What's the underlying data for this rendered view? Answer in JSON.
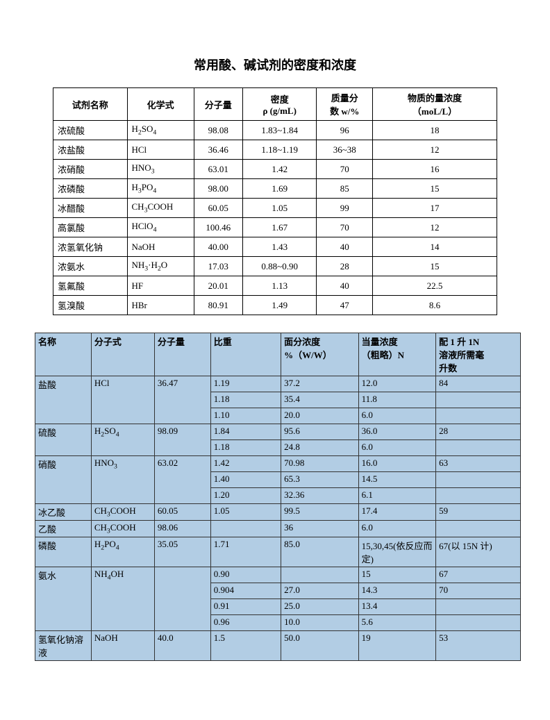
{
  "title": "常用酸、碱试剂的密度和浓度",
  "table1": {
    "headers": {
      "name": "试剂名称",
      "formula": "化学式",
      "mw": "分子量",
      "density": "密度\nρ (g/mL)",
      "mass": "质量分数 w/%",
      "conc": "物质的量浓度（moL/L）"
    },
    "rows": [
      {
        "name": "浓硫酸",
        "formula": "H2SO4",
        "mw": "98.08",
        "density": "1.83~1.84",
        "mass": "96",
        "conc": "18"
      },
      {
        "name": "浓盐酸",
        "formula": "HCl",
        "mw": "36.46",
        "density": "1.18~1.19",
        "mass": "36~38",
        "conc": "12"
      },
      {
        "name": "浓硝酸",
        "formula": "HNO3",
        "mw": "63.01",
        "density": "1.42",
        "mass": "70",
        "conc": "16"
      },
      {
        "name": "浓磷酸",
        "formula": "H3PO4",
        "mw": "98.00",
        "density": "1.69",
        "mass": "85",
        "conc": "15"
      },
      {
        "name": "冰醋酸",
        "formula": "CH3COOH",
        "mw": "60.05",
        "density": "1.05",
        "mass": "99",
        "conc": "17"
      },
      {
        "name": "高氯酸",
        "formula": "HClO4",
        "mw": "100.46",
        "density": "1.67",
        "mass": "70",
        "conc": "12"
      },
      {
        "name": "浓氢氧化钠",
        "formula": "NaOH",
        "mw": "40.00",
        "density": "1.43",
        "mass": "40",
        "conc": "14"
      },
      {
        "name": "浓氨水",
        "formula": "NH3·H2O",
        "mw": "17.03",
        "density": "0.88~0.90",
        "mass": "28",
        "conc": "15"
      },
      {
        "name": "氢氟酸",
        "formula": "HF",
        "mw": "20.01",
        "density": "1.13",
        "mass": "40",
        "conc": "22.5"
      },
      {
        "name": "氢溴酸",
        "formula": "HBr",
        "mw": "80.91",
        "density": "1.49",
        "mass": "47",
        "conc": "8.6"
      }
    ]
  },
  "table2": {
    "headers": {
      "name": "名称",
      "formula": "分子式",
      "mw": "分子量",
      "sg": "比重",
      "wp": "面分浓度%（W/W）",
      "eq": "当量浓度（粗略）N",
      "ml": "配 1 升 1N溶液所需毫升数"
    },
    "rows": [
      {
        "name": "盐酸",
        "formula": "HCl",
        "mw": "36.47",
        "sg": "1.19",
        "wp": "37.2",
        "eq": "12.0",
        "ml": "84",
        "span": 3
      },
      {
        "sg": "1.18",
        "wp": "35.4",
        "eq": "11.8",
        "ml": ""
      },
      {
        "sg": "1.10",
        "wp": "20.0",
        "eq": "6.0",
        "ml": ""
      },
      {
        "name": "硫酸",
        "formula": "H2SO4",
        "mw": "98.09",
        "sg": "1.84",
        "wp": "95.6",
        "eq": "36.0",
        "ml": "28",
        "span": 2
      },
      {
        "sg": "1.18",
        "wp": "24.8",
        "eq": "6.0",
        "ml": ""
      },
      {
        "name": "硝酸",
        "formula": "HNO3",
        "mw": "63.02",
        "sg": "1.42",
        "wp": "70.98",
        "eq": "16.0",
        "ml": "63",
        "span": 3
      },
      {
        "sg": "1.40",
        "wp": "65.3",
        "eq": "14.5",
        "ml": ""
      },
      {
        "sg": "1.20",
        "wp": "32.36",
        "eq": "6.1",
        "ml": ""
      },
      {
        "name": "冰乙酸",
        "formula": "CH3COOH",
        "mw": "60.05",
        "sg": "1.05",
        "wp": "99.5",
        "eq": "17.4",
        "ml": "59",
        "span": 1
      },
      {
        "name": "乙酸",
        "formula": "CH3COOH",
        "mw": "98.06",
        "sg": "",
        "wp": "36",
        "eq": "6.0",
        "ml": "",
        "span": 1
      },
      {
        "name": "磷酸",
        "formula": "H2PO4",
        "mw": "35.05",
        "sg": "1.71",
        "wp": "85.0",
        "eq": "15,30,45(依反应而定)",
        "ml": "67(以 15N 计)",
        "span": 1
      },
      {
        "name": "氨水",
        "formula": "NH4OH",
        "mw": "",
        "sg": "0.90",
        "wp": "",
        "eq": "15",
        "ml": "67",
        "span": 4
      },
      {
        "sg": "0.904",
        "wp": "27.0",
        "eq": "14.3",
        "ml": "70"
      },
      {
        "sg": "0.91",
        "wp": "25.0",
        "eq": "13.4",
        "ml": ""
      },
      {
        "sg": "0.96",
        "wp": "10.0",
        "eq": "5.6",
        "ml": ""
      },
      {
        "name": "氢氧化钠溶液",
        "formula": "NaOH",
        "mw": "40.0",
        "sg": "1.5",
        "wp": "50.0",
        "eq": "19",
        "ml": "53",
        "span": 1
      }
    ]
  },
  "style": {
    "page_bg": "#ffffff",
    "text_color": "#000000",
    "table1_border": "#000000",
    "table2_bg": "#b2cde4",
    "table2_border": "#333333",
    "title_fontsize": 18,
    "body_fontsize": 13
  }
}
